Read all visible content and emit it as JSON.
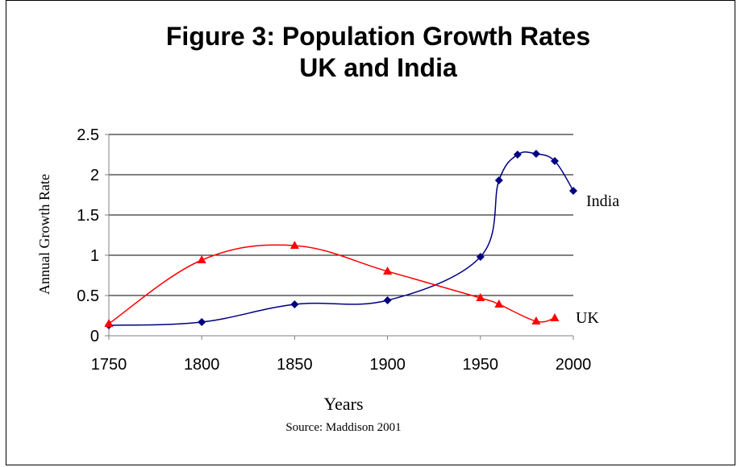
{
  "chart_data": {
    "type": "line",
    "title": "Figure 3: Population Growth Rates",
    "subtitle": "UK and India",
    "xlabel": "Years",
    "ylabel": "Annual Growth Rate",
    "source": "Source: Maddison 2001",
    "xlim": [
      1750,
      2000
    ],
    "ylim": [
      0,
      2.5
    ],
    "x_ticks": [
      "1750",
      "1800",
      "1850",
      "1900",
      "1950",
      "2000"
    ],
    "y_ticks": [
      "0",
      "0.5",
      "1",
      "1.5",
      "2",
      "2.5"
    ],
    "grid": "horizontal",
    "series": [
      {
        "name": "India",
        "color": "#000080",
        "marker": "diamond",
        "points": [
          [
            1750,
            0.13
          ],
          [
            1800,
            0.17
          ],
          [
            1850,
            0.39
          ],
          [
            1900,
            0.44
          ],
          [
            1950,
            0.98
          ],
          [
            1960,
            1.93
          ],
          [
            1970,
            2.25
          ],
          [
            1980,
            2.26
          ],
          [
            1990,
            2.17
          ],
          [
            2000,
            1.8
          ]
        ]
      },
      {
        "name": "UK",
        "color": "#ff0000",
        "marker": "triangle",
        "points": [
          [
            1750,
            0.15
          ],
          [
            1800,
            0.94
          ],
          [
            1850,
            1.12
          ],
          [
            1900,
            0.8
          ],
          [
            1950,
            0.47
          ],
          [
            1960,
            0.39
          ],
          [
            1980,
            0.18
          ],
          [
            1990,
            0.22
          ]
        ]
      }
    ]
  }
}
